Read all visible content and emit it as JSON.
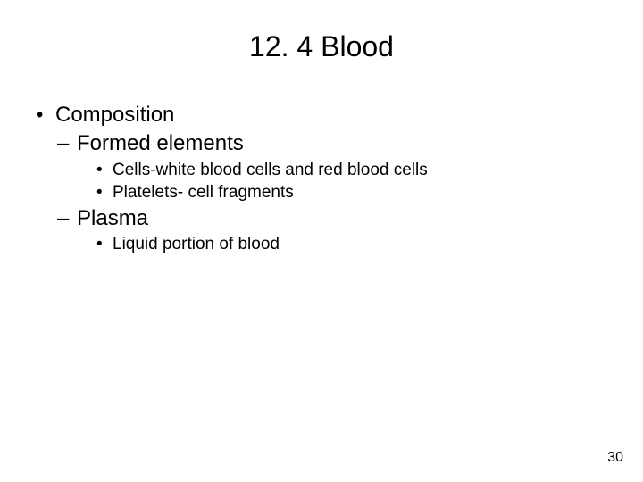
{
  "title": "12. 4 Blood",
  "bullets": {
    "l1_0": "Composition",
    "l2_0": "Formed elements",
    "l3_0": "Cells-white blood cells and red blood cells",
    "l3_1": "Platelets- cell fragments",
    "l2_1": "Plasma",
    "l3_2": "Liquid portion of blood"
  },
  "pageNumber": "30",
  "colors": {
    "background": "#ffffff",
    "text": "#000000"
  },
  "typography": {
    "title_fontsize": 32,
    "l1_fontsize": 24,
    "l2_fontsize": 24,
    "l3_fontsize": 19,
    "pagenum_fontsize": 16,
    "font_family": "Arial"
  }
}
